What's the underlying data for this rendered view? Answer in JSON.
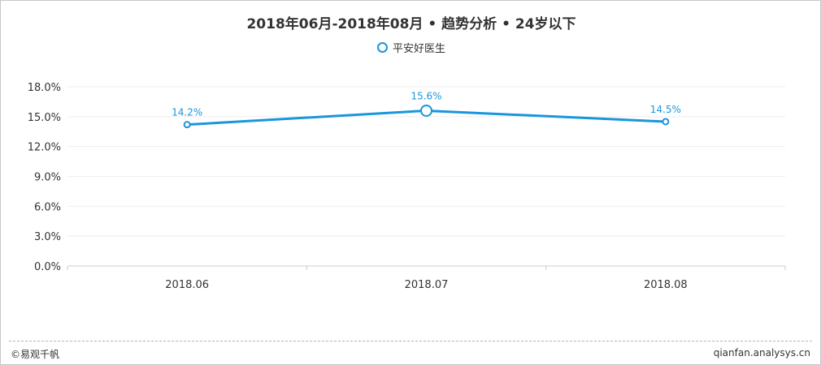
{
  "chart_data": {
    "type": "line",
    "title": "2018年06月-2018年08月 • 趋势分析 • 24岁以下",
    "categories": [
      "2018.06",
      "2018.07",
      "2018.08"
    ],
    "series": [
      {
        "name": "平安好医生",
        "values": [
          14.2,
          15.6,
          14.5
        ],
        "labels": [
          "14.2%",
          "15.6%",
          "14.5%"
        ],
        "color": "#1a96dc"
      }
    ],
    "xlabel": "",
    "ylabel": "",
    "ylim": [
      0,
      18
    ],
    "yticks": [
      0,
      3,
      6,
      9,
      12,
      15,
      18
    ],
    "ytick_labels": [
      "0.0%",
      "3.0%",
      "6.0%",
      "9.0%",
      "12.0%",
      "15.0%",
      "18.0%"
    ],
    "grid": true,
    "legend_position": "top-center",
    "highlighted_index": 1
  },
  "footer": {
    "copyright": "©易观千帆",
    "site": "qianfan.analysys.cn"
  }
}
